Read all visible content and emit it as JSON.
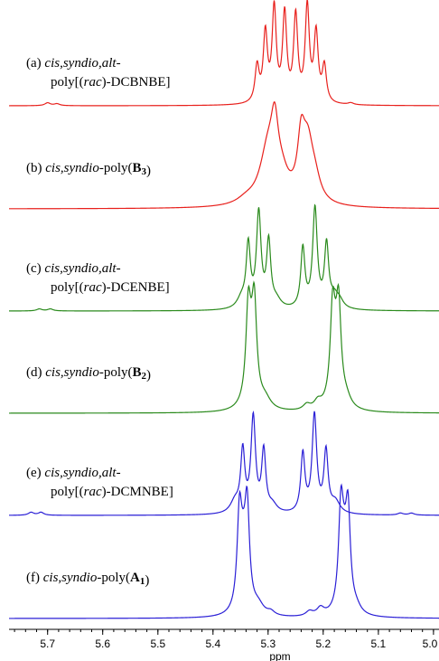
{
  "chart_data": {
    "type": "line",
    "title": "",
    "xlabel": "ppm",
    "ylabel": "",
    "xlim": [
      5.77,
      4.99
    ],
    "x_reversed": true,
    "grid": false,
    "legend": "none",
    "x_ticks": [
      5.7,
      5.6,
      5.5,
      5.4,
      5.3,
      5.2,
      5.1,
      5.0
    ],
    "x_tick_labels": [
      "5.7",
      "5.6",
      "5.5",
      "5.4",
      "5.3",
      "5.2",
      "5.1",
      "5.0"
    ],
    "series": [
      {
        "id": "a",
        "color": "#e8201c",
        "label_lines": [
          [
            {
              "text": "(a) ",
              "style": "normal"
            },
            {
              "text": "cis,syndio,alt-",
              "style": "italic"
            }
          ],
          [
            {
              "text": "poly[(",
              "style": "normal"
            },
            {
              "text": "rac",
              "style": "italic"
            },
            {
              "text": ")-DCBNBE]",
              "style": "normal"
            }
          ]
        ],
        "peaks": [
          {
            "ppm": 5.32,
            "height": 0.38,
            "width": 0.0045
          },
          {
            "ppm": 5.305,
            "height": 0.72,
            "width": 0.0045
          },
          {
            "ppm": 5.289,
            "height": 0.98,
            "width": 0.0045
          },
          {
            "ppm": 5.27,
            "height": 0.92,
            "width": 0.0045
          },
          {
            "ppm": 5.25,
            "height": 0.9,
            "width": 0.0045
          },
          {
            "ppm": 5.229,
            "height": 1.0,
            "width": 0.0045
          },
          {
            "ppm": 5.213,
            "height": 0.72,
            "width": 0.0045
          },
          {
            "ppm": 5.198,
            "height": 0.38,
            "width": 0.0045
          },
          {
            "ppm": 5.7,
            "height": 0.03,
            "width": 0.006
          },
          {
            "ppm": 5.683,
            "height": 0.02,
            "width": 0.006
          },
          {
            "ppm": 5.15,
            "height": 0.02,
            "width": 0.006
          }
        ]
      },
      {
        "id": "b",
        "color": "#e8201c",
        "label_lines": [
          [
            {
              "text": "(b) ",
              "style": "normal"
            },
            {
              "text": "cis,syndio",
              "style": "italic"
            },
            {
              "text": "-poly(",
              "style": "normal"
            },
            {
              "text": "B",
              "style": "bold"
            },
            {
              "text": "3",
              "style": "boldsub"
            },
            {
              "text": ")",
              "style": "normal"
            }
          ]
        ],
        "peaks": [
          {
            "ppm": 5.3,
            "height": 0.55,
            "width": 0.018
          },
          {
            "ppm": 5.288,
            "height": 0.55,
            "width": 0.008
          },
          {
            "ppm": 5.275,
            "height": 0.2,
            "width": 0.015
          },
          {
            "ppm": 5.24,
            "height": 0.55,
            "width": 0.008
          },
          {
            "ppm": 5.228,
            "height": 0.55,
            "width": 0.012
          },
          {
            "ppm": 5.215,
            "height": 0.18,
            "width": 0.012
          },
          {
            "ppm": 5.34,
            "height": 0.05,
            "width": 0.02
          }
        ]
      },
      {
        "id": "c",
        "color": "#2a8a1c",
        "label_lines": [
          [
            {
              "text": "(c) ",
              "style": "normal"
            },
            {
              "text": "cis,syndio,alt-",
              "style": "italic"
            }
          ],
          [
            {
              "text": "poly[(",
              "style": "normal"
            },
            {
              "text": "rac",
              "style": "italic"
            },
            {
              "text": ")-DCENBE]",
              "style": "normal"
            }
          ]
        ],
        "peaks": [
          {
            "ppm": 5.348,
            "height": 0.1,
            "width": 0.01
          },
          {
            "ppm": 5.336,
            "height": 0.62,
            "width": 0.0045
          },
          {
            "ppm": 5.317,
            "height": 0.95,
            "width": 0.005
          },
          {
            "ppm": 5.299,
            "height": 0.65,
            "width": 0.0045
          },
          {
            "ppm": 5.285,
            "height": 0.08,
            "width": 0.01
          },
          {
            "ppm": 5.237,
            "height": 0.6,
            "width": 0.0045
          },
          {
            "ppm": 5.215,
            "height": 1.0,
            "width": 0.005
          },
          {
            "ppm": 5.194,
            "height": 0.62,
            "width": 0.0045
          },
          {
            "ppm": 5.18,
            "height": 0.12,
            "width": 0.01
          },
          {
            "ppm": 5.17,
            "height": 0.06,
            "width": 0.008
          },
          {
            "ppm": 5.715,
            "height": 0.02,
            "width": 0.006
          },
          {
            "ppm": 5.695,
            "height": 0.02,
            "width": 0.006
          }
        ]
      },
      {
        "id": "d",
        "color": "#2a8a1c",
        "label_lines": [
          [
            {
              "text": "(d) ",
              "style": "normal"
            },
            {
              "text": "cis,syndio",
              "style": "italic"
            },
            {
              "text": "-poly(",
              "style": "normal"
            },
            {
              "text": "B",
              "style": "bold"
            },
            {
              "text": "2",
              "style": "boldsub"
            },
            {
              "text": ")",
              "style": "normal"
            }
          ]
        ],
        "peaks": [
          {
            "ppm": 5.336,
            "height": 0.85,
            "width": 0.005
          },
          {
            "ppm": 5.33,
            "height": 0.45,
            "width": 0.01
          },
          {
            "ppm": 5.325,
            "height": 0.85,
            "width": 0.005
          },
          {
            "ppm": 5.305,
            "height": 0.1,
            "width": 0.012
          },
          {
            "ppm": 5.23,
            "height": 0.06,
            "width": 0.008
          },
          {
            "ppm": 5.21,
            "height": 0.08,
            "width": 0.008
          },
          {
            "ppm": 5.183,
            "height": 0.85,
            "width": 0.005
          },
          {
            "ppm": 5.177,
            "height": 0.45,
            "width": 0.01
          },
          {
            "ppm": 5.172,
            "height": 0.82,
            "width": 0.005
          },
          {
            "ppm": 5.158,
            "height": 0.08,
            "width": 0.01
          }
        ]
      },
      {
        "id": "e",
        "color": "#2a1fd6",
        "label_lines": [
          [
            {
              "text": "(e) ",
              "style": "normal"
            },
            {
              "text": "cis,syndio,alt-",
              "style": "italic"
            }
          ],
          [
            {
              "text": "poly[(",
              "style": "normal"
            },
            {
              "text": "rac",
              "style": "italic"
            },
            {
              "text": ")-DCMNBE]",
              "style": "normal"
            }
          ]
        ],
        "peaks": [
          {
            "ppm": 5.36,
            "height": 0.12,
            "width": 0.01
          },
          {
            "ppm": 5.346,
            "height": 0.62,
            "width": 0.0045
          },
          {
            "ppm": 5.327,
            "height": 0.97,
            "width": 0.005
          },
          {
            "ppm": 5.308,
            "height": 0.62,
            "width": 0.0045
          },
          {
            "ppm": 5.292,
            "height": 0.08,
            "width": 0.01
          },
          {
            "ppm": 5.237,
            "height": 0.6,
            "width": 0.0045
          },
          {
            "ppm": 5.216,
            "height": 1.0,
            "width": 0.005
          },
          {
            "ppm": 5.195,
            "height": 0.62,
            "width": 0.0045
          },
          {
            "ppm": 5.178,
            "height": 0.12,
            "width": 0.01
          },
          {
            "ppm": 5.73,
            "height": 0.03,
            "width": 0.006
          },
          {
            "ppm": 5.712,
            "height": 0.03,
            "width": 0.006
          },
          {
            "ppm": 5.06,
            "height": 0.02,
            "width": 0.006
          },
          {
            "ppm": 5.04,
            "height": 0.02,
            "width": 0.006
          }
        ]
      },
      {
        "id": "f",
        "color": "#2a1fd6",
        "label_lines": [
          [
            {
              "text": "(f) ",
              "style": "normal"
            },
            {
              "text": "cis,syndio",
              "style": "italic"
            },
            {
              "text": "-poly(",
              "style": "normal"
            },
            {
              "text": "A",
              "style": "bold"
            },
            {
              "text": "1",
              "style": "boldsub"
            },
            {
              "text": ")",
              "style": "normal"
            }
          ]
        ],
        "peaks": [
          {
            "ppm": 5.352,
            "height": 0.9,
            "width": 0.005
          },
          {
            "ppm": 5.345,
            "height": 0.5,
            "width": 0.008
          },
          {
            "ppm": 5.338,
            "height": 0.95,
            "width": 0.005
          },
          {
            "ppm": 5.318,
            "height": 0.1,
            "width": 0.012
          },
          {
            "ppm": 5.295,
            "height": 0.04,
            "width": 0.008
          },
          {
            "ppm": 5.225,
            "height": 0.05,
            "width": 0.008
          },
          {
            "ppm": 5.205,
            "height": 0.08,
            "width": 0.008
          },
          {
            "ppm": 5.168,
            "height": 0.92,
            "width": 0.005
          },
          {
            "ppm": 5.162,
            "height": 0.5,
            "width": 0.008
          },
          {
            "ppm": 5.155,
            "height": 0.9,
            "width": 0.005
          },
          {
            "ppm": 5.14,
            "height": 0.06,
            "width": 0.01
          }
        ]
      }
    ]
  }
}
